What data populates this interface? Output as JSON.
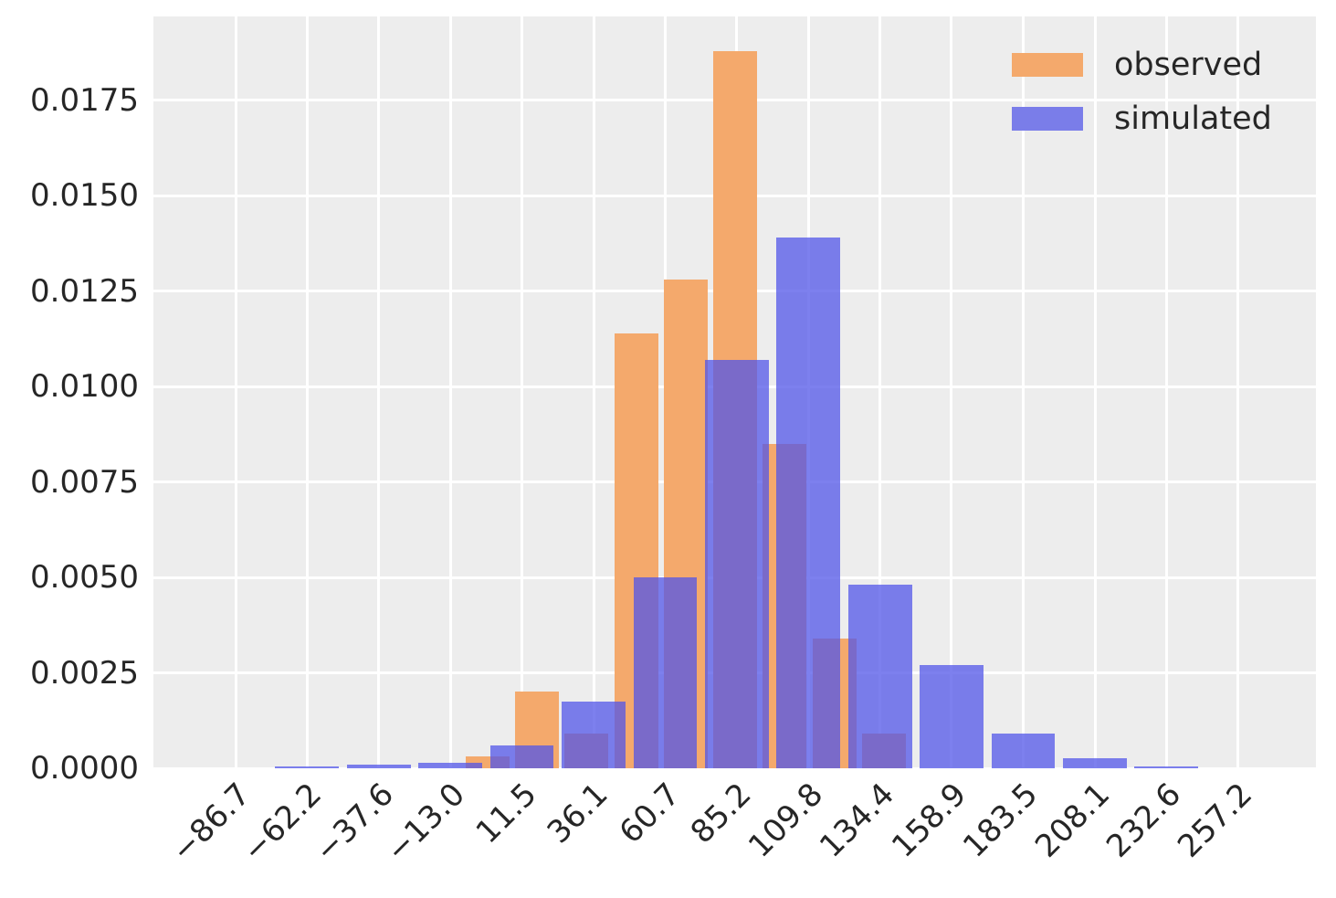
{
  "chart_data": {
    "type": "histogram",
    "normalization": "density",
    "title": "",
    "xlabel": "",
    "ylabel": "",
    "grid": true,
    "legend_position": "upper right",
    "xlim": [
      -114.9,
      283.9
    ],
    "ylim": [
      0,
      0.0197
    ],
    "x_ticks": [
      {
        "label": "−86.7",
        "value": -86.7
      },
      {
        "label": "−62.2",
        "value": -62.2
      },
      {
        "label": "−37.6",
        "value": -37.6
      },
      {
        "label": "−13.0",
        "value": -13.0
      },
      {
        "label": "11.5",
        "value": 11.5
      },
      {
        "label": "36.1",
        "value": 36.1
      },
      {
        "label": "60.7",
        "value": 60.7
      },
      {
        "label": "85.2",
        "value": 85.2
      },
      {
        "label": "109.8",
        "value": 109.8
      },
      {
        "label": "134.4",
        "value": 134.4
      },
      {
        "label": "158.9",
        "value": 158.9
      },
      {
        "label": "183.5",
        "value": 183.5
      },
      {
        "label": "208.1",
        "value": 208.1
      },
      {
        "label": "232.6",
        "value": 232.6
      },
      {
        "label": "257.2",
        "value": 257.2
      }
    ],
    "y_ticks": [
      {
        "label": "0.0000",
        "value": 0.0
      },
      {
        "label": "0.0025",
        "value": 0.0025
      },
      {
        "label": "0.0050",
        "value": 0.005
      },
      {
        "label": "0.0075",
        "value": 0.0075
      },
      {
        "label": "0.0100",
        "value": 0.01
      },
      {
        "label": "0.0125",
        "value": 0.0125
      },
      {
        "label": "0.0150",
        "value": 0.015
      },
      {
        "label": "0.0175",
        "value": 0.0175
      }
    ],
    "series": [
      {
        "name": "observed",
        "fill": "#f4a96c",
        "legend_color": "#f4a96c",
        "bin_width": 17.0,
        "bar_draw_width": 15.0,
        "bin_centers": [
          -0.3,
          16.7,
          33.7,
          50.7,
          67.7,
          84.7,
          101.7,
          118.7,
          135.7
        ],
        "densities": [
          0.0003,
          0.002,
          0.0009,
          0.0114,
          0.0128,
          0.0188,
          0.0085,
          0.0034,
          0.0009
        ]
      },
      {
        "name": "simulated",
        "fill": "rgba(82,86,232,0.75)",
        "legend_color": "#7a7de9",
        "bin_width": 24.56,
        "bar_draw_width": 21.9,
        "bin_centers": [
          -62.2,
          -37.6,
          -13.0,
          11.5,
          36.1,
          60.7,
          85.2,
          109.8,
          134.4,
          158.9,
          183.5,
          208.1,
          232.6
        ],
        "densities": [
          6e-05,
          0.0001,
          0.00015,
          0.0006,
          0.00175,
          0.005,
          0.0107,
          0.0139,
          0.0048,
          0.0027,
          0.0009,
          0.00026,
          6e-05
        ]
      }
    ]
  },
  "style": {
    "figure_bg": "#ffffff",
    "plot_bg": "#ededed",
    "grid_color": "#ffffff",
    "tick_text_color": "#262626",
    "legend_text_color": "#262626"
  }
}
